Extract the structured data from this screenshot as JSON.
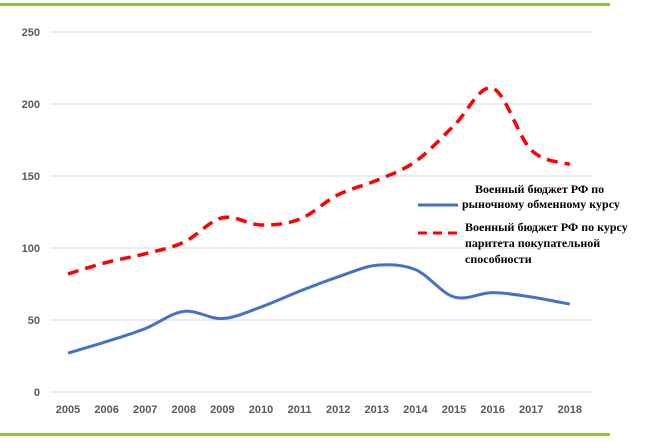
{
  "colors": {
    "frame": "#8cc63f",
    "grid": "#d9d9d9",
    "axis_text": "#595959",
    "series_market": "#4472c4",
    "series_ppp": "#ff0000"
  },
  "chart_data": {
    "type": "line",
    "title": "",
    "xlabel": "",
    "ylabel": "",
    "ylim": [
      0,
      250
    ],
    "yticks": [
      "0",
      "50",
      "100",
      "150",
      "200",
      "250"
    ],
    "x": [
      "2005",
      "2006",
      "2007",
      "2008",
      "2009",
      "2010",
      "2011",
      "2012",
      "2013",
      "2014",
      "2015",
      "2016",
      "2017",
      "2018"
    ],
    "grid": "horizontal",
    "legend_position": "right",
    "series": [
      {
        "legend_lines": [
          "Военный бюджет РФ по",
          "рыночному обменному курсу"
        ],
        "style": "solid",
        "values": [
          27,
          35,
          44,
          56,
          51,
          59,
          70,
          80,
          88,
          85,
          66,
          69,
          66,
          61
        ]
      },
      {
        "legend_lines": [
          "Военный бюджет РФ по курсу",
          "паритета покупательной",
          "способности"
        ],
        "style": "dashed",
        "values": [
          82,
          90,
          96,
          104,
          121,
          116,
          120,
          137,
          147,
          160,
          185,
          211,
          168,
          158
        ]
      }
    ]
  }
}
